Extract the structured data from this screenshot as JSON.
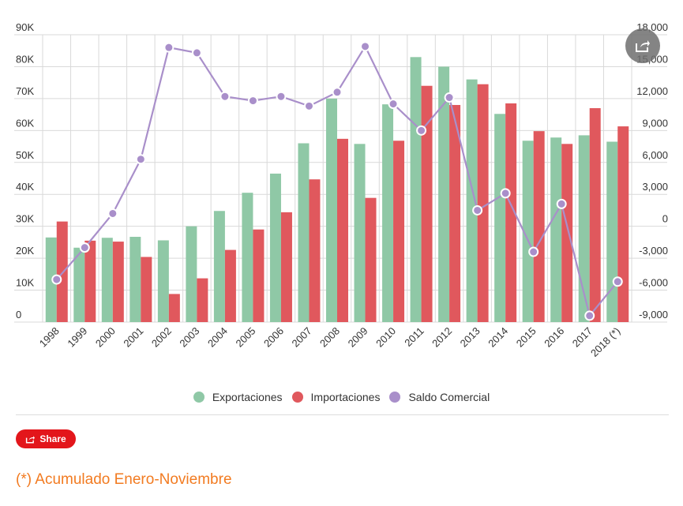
{
  "chart_data": {
    "type": "bar",
    "categories": [
      "1998",
      "1999",
      "2000",
      "2001",
      "2002",
      "2003",
      "2004",
      "2005",
      "2006",
      "2007",
      "2008",
      "2009",
      "2010",
      "2011",
      "2012",
      "2013",
      "2014",
      "2015",
      "2016",
      "2017",
      "2018 (*)"
    ],
    "series": [
      {
        "name": "Exportaciones",
        "type": "bar",
        "axis": "left",
        "color": "#8fc8a6",
        "values": [
          26500,
          23300,
          26400,
          26700,
          25600,
          30000,
          34800,
          40500,
          46500,
          56000,
          70000,
          55800,
          68200,
          83000,
          80000,
          76000,
          65200,
          56800,
          57800,
          58500,
          56500
        ]
      },
      {
        "name": "Importaciones",
        "type": "bar",
        "axis": "left",
        "color": "#e0585d",
        "values": [
          31500,
          25500,
          25200,
          20400,
          8800,
          13700,
          22600,
          29000,
          34400,
          44700,
          57400,
          38900,
          56800,
          74000,
          68000,
          74500,
          68500,
          59800,
          55800,
          67000,
          61300
        ]
      },
      {
        "name": "Saldo Comercial",
        "type": "line",
        "axis": "right",
        "color": "#a98fca",
        "values": [
          -5000,
          -2000,
          1200,
          6300,
          16800,
          16300,
          12200,
          11800,
          12200,
          11300,
          12600,
          16900,
          11500,
          9000,
          12100,
          1500,
          3100,
          -2400,
          2100,
          -8400,
          -5200
        ]
      }
    ],
    "y_left": {
      "min": 0,
      "max": 90000,
      "ticks": [
        "0",
        "10K",
        "20K",
        "30K",
        "40K",
        "50K",
        "60K",
        "70K",
        "80K",
        "90K"
      ]
    },
    "y_right": {
      "min": -9000,
      "max": 18000,
      "ticks": [
        "-9,000",
        "-6,000",
        "-3,000",
        "0",
        "3,000",
        "6,000",
        "9,000",
        "12,000",
        "15,000",
        "18,000"
      ]
    },
    "grid": true,
    "legend_position": "bottom-center"
  },
  "ui": {
    "share_label": "Share",
    "share_color": "#e3161b",
    "footnote": "(*) Acumulado Enero-Noviembre",
    "footnote_color": "#f27b21",
    "floating_share_icon": "share-icon"
  }
}
